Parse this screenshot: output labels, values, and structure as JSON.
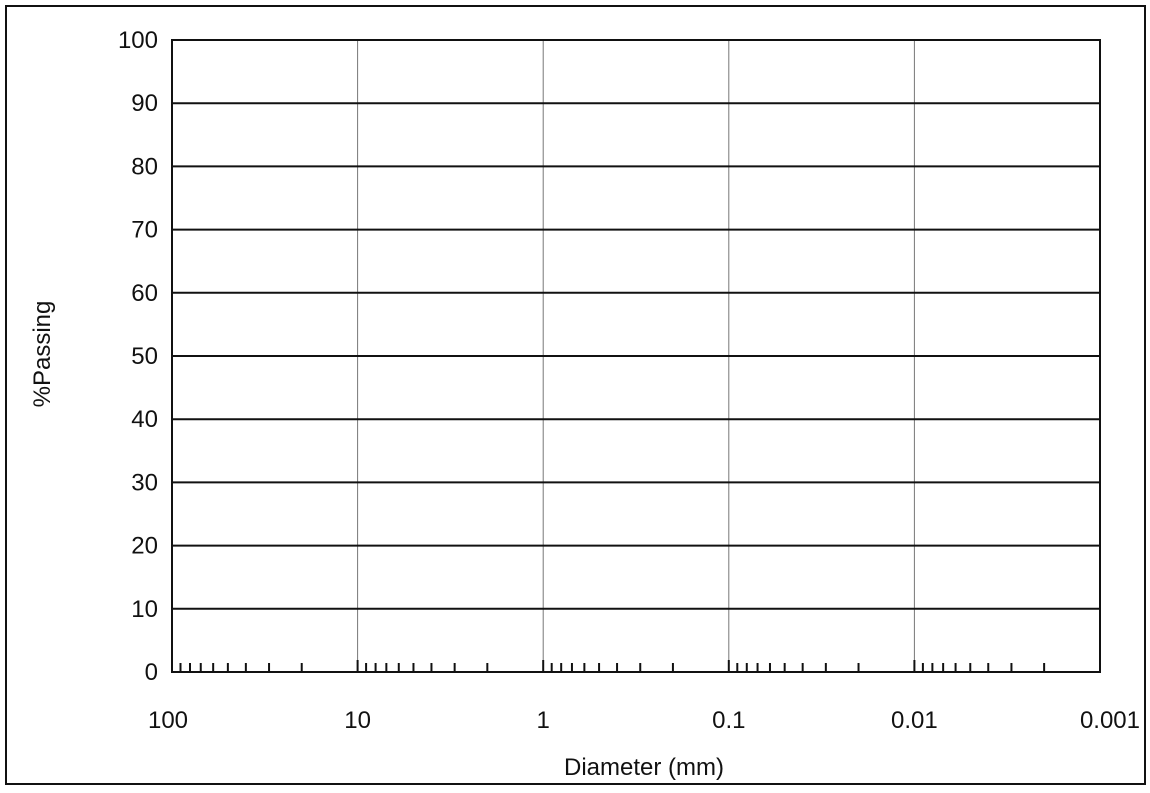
{
  "chart_data": {
    "type": "line",
    "title": "",
    "xlabel": "Diameter (mm)",
    "ylabel": "%Passing",
    "x_scale": "log",
    "x_direction": "reversed",
    "xlim": [
      100,
      0.001
    ],
    "ylim": [
      0,
      100
    ],
    "x_ticks": [
      "100",
      "10",
      "1",
      "0.1",
      "0.01",
      "0.001"
    ],
    "y_ticks": [
      "0",
      "10",
      "20",
      "30",
      "40",
      "50",
      "60",
      "70",
      "80",
      "90",
      "100"
    ],
    "grid": true,
    "legend": "none",
    "series": []
  }
}
